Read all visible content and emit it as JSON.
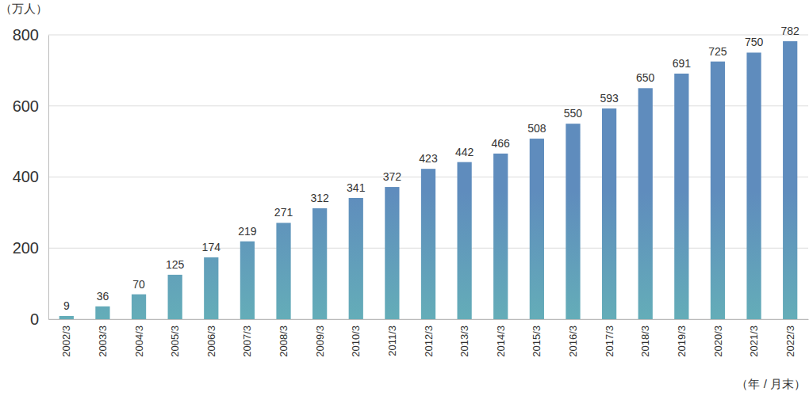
{
  "chart_data": {
    "type": "bar",
    "ylabel": "（万人）",
    "xlabel": "（年 / 月末）",
    "categories": [
      "2002/3",
      "2003/3",
      "2004/3",
      "2005/3",
      "2006/3",
      "2007/3",
      "2008/3",
      "2009/3",
      "2010/3",
      "2011/3",
      "2012/3",
      "2013/3",
      "2014/3",
      "2015/3",
      "2016/3",
      "2017/3",
      "2018/3",
      "2019/3",
      "2020/3",
      "2021/3",
      "2022/3"
    ],
    "values": [
      9,
      36,
      70,
      125,
      174,
      219,
      271,
      312,
      341,
      372,
      423,
      442,
      466,
      508,
      550,
      593,
      650,
      691,
      725,
      750,
      782
    ],
    "color": "#5f8cbd",
    "ylim": [
      0,
      800
    ],
    "yticks": [
      0,
      200,
      400,
      600,
      800
    ],
    "grid": true,
    "data_labels": true
  }
}
